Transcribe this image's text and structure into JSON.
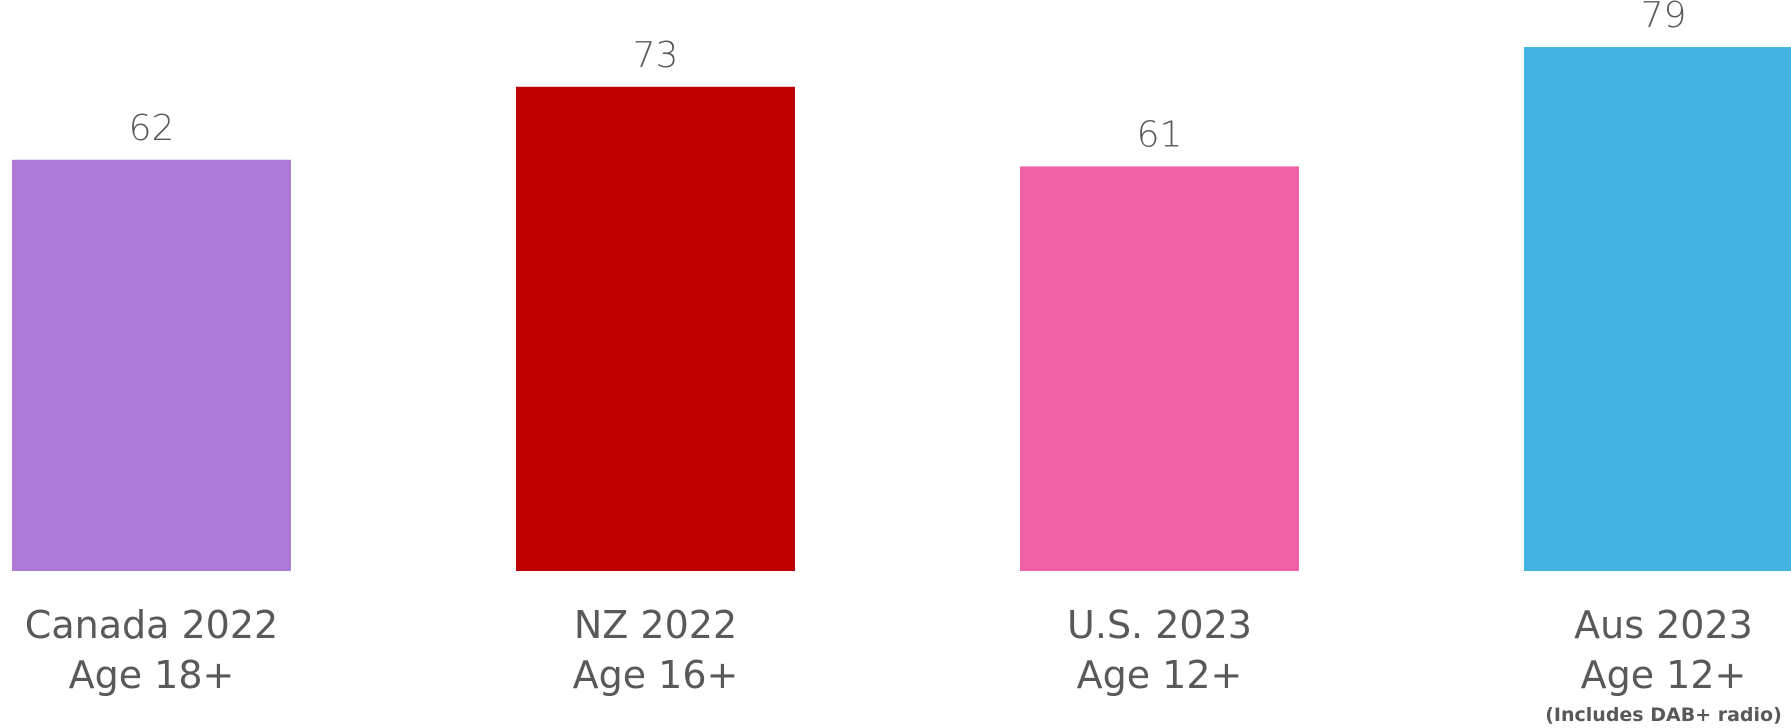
{
  "chart_data": {
    "type": "bar",
    "title": "",
    "xlabel": "",
    "ylabel": "",
    "ylim": [
      0,
      79
    ],
    "grid": false,
    "legend": "none",
    "categories": [
      {
        "line1": "Canada 2022",
        "line2": "Age 18+",
        "note": ""
      },
      {
        "line1": "NZ 2022",
        "line2": "Age 16+",
        "note": ""
      },
      {
        "line1": "U.S. 2023",
        "line2": "Age 12+",
        "note": ""
      },
      {
        "line1": "Aus 2023",
        "line2": "Age 12+",
        "note": "(Includes DAB+ radio)"
      }
    ],
    "values": [
      62,
      73,
      61,
      79
    ],
    "colors": [
      "#ad7bd5",
      "#bf0000",
      "#ef62a6",
      "#44b3e2"
    ]
  }
}
